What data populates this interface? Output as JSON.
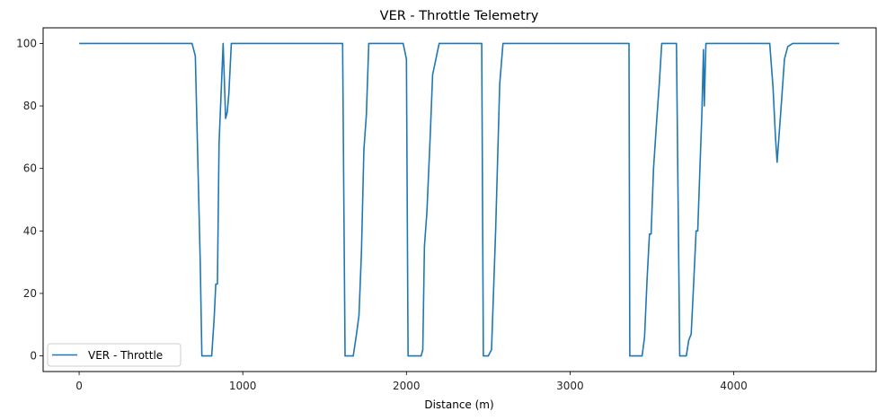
{
  "chart_data": {
    "type": "line",
    "title": "VER - Throttle Telemetry",
    "xlabel": "Distance (m)",
    "ylabel": "",
    "xlim": [
      -220,
      4870
    ],
    "ylim": [
      -5,
      105
    ],
    "x_ticks": [
      0,
      1000,
      2000,
      3000,
      4000
    ],
    "y_ticks": [
      0,
      20,
      40,
      60,
      80,
      100
    ],
    "grid": false,
    "legend": {
      "position": "bottom-left",
      "entries": [
        "VER - Throttle"
      ]
    },
    "series": [
      {
        "name": "VER - Throttle",
        "color": "#1f77b4",
        "points": [
          [
            5,
            100
          ],
          [
            100,
            100
          ],
          [
            300,
            100
          ],
          [
            500,
            100
          ],
          [
            690,
            100
          ],
          [
            710,
            96
          ],
          [
            740,
            30
          ],
          [
            750,
            0
          ],
          [
            775,
            0
          ],
          [
            810,
            0
          ],
          [
            825,
            12
          ],
          [
            835,
            23
          ],
          [
            845,
            23
          ],
          [
            855,
            68
          ],
          [
            880,
            100
          ],
          [
            895,
            76
          ],
          [
            905,
            78
          ],
          [
            915,
            84
          ],
          [
            930,
            100
          ],
          [
            950,
            100
          ],
          [
            1100,
            100
          ],
          [
            1300,
            100
          ],
          [
            1500,
            100
          ],
          [
            1610,
            100
          ],
          [
            1625,
            0
          ],
          [
            1675,
            0
          ],
          [
            1695,
            7
          ],
          [
            1710,
            13
          ],
          [
            1725,
            33
          ],
          [
            1740,
            66
          ],
          [
            1755,
            77
          ],
          [
            1770,
            100
          ],
          [
            1800,
            100
          ],
          [
            1900,
            100
          ],
          [
            1980,
            100
          ],
          [
            2000,
            95
          ],
          [
            2010,
            0
          ],
          [
            2050,
            0
          ],
          [
            2090,
            0
          ],
          [
            2100,
            2
          ],
          [
            2110,
            35
          ],
          [
            2125,
            46
          ],
          [
            2145,
            70
          ],
          [
            2160,
            90
          ],
          [
            2180,
            95
          ],
          [
            2200,
            100
          ],
          [
            2300,
            100
          ],
          [
            2460,
            100
          ],
          [
            2470,
            0
          ],
          [
            2500,
            0
          ],
          [
            2520,
            2
          ],
          [
            2545,
            40
          ],
          [
            2570,
            87
          ],
          [
            2590,
            100
          ],
          [
            2700,
            100
          ],
          [
            2900,
            100
          ],
          [
            3100,
            100
          ],
          [
            3300,
            100
          ],
          [
            3360,
            100
          ],
          [
            3365,
            0
          ],
          [
            3400,
            0
          ],
          [
            3440,
            0
          ],
          [
            3455,
            6
          ],
          [
            3470,
            24
          ],
          [
            3485,
            39
          ],
          [
            3495,
            39
          ],
          [
            3510,
            60
          ],
          [
            3530,
            76
          ],
          [
            3545,
            87
          ],
          [
            3560,
            100
          ],
          [
            3600,
            100
          ],
          [
            3650,
            100
          ],
          [
            3670,
            0
          ],
          [
            3710,
            0
          ],
          [
            3725,
            5
          ],
          [
            3740,
            7
          ],
          [
            3755,
            23
          ],
          [
            3770,
            40
          ],
          [
            3780,
            40
          ],
          [
            3790,
            55
          ],
          [
            3805,
            77
          ],
          [
            3815,
            98
          ],
          [
            3820,
            80
          ],
          [
            3830,
            100
          ],
          [
            3900,
            100
          ],
          [
            4000,
            100
          ],
          [
            4100,
            100
          ],
          [
            4220,
            100
          ],
          [
            4240,
            86
          ],
          [
            4255,
            70
          ],
          [
            4265,
            62
          ],
          [
            4290,
            80
          ],
          [
            4310,
            95
          ],
          [
            4330,
            99
          ],
          [
            4360,
            100
          ],
          [
            4400,
            100
          ],
          [
            4500,
            100
          ],
          [
            4640,
            100
          ]
        ]
      }
    ]
  }
}
